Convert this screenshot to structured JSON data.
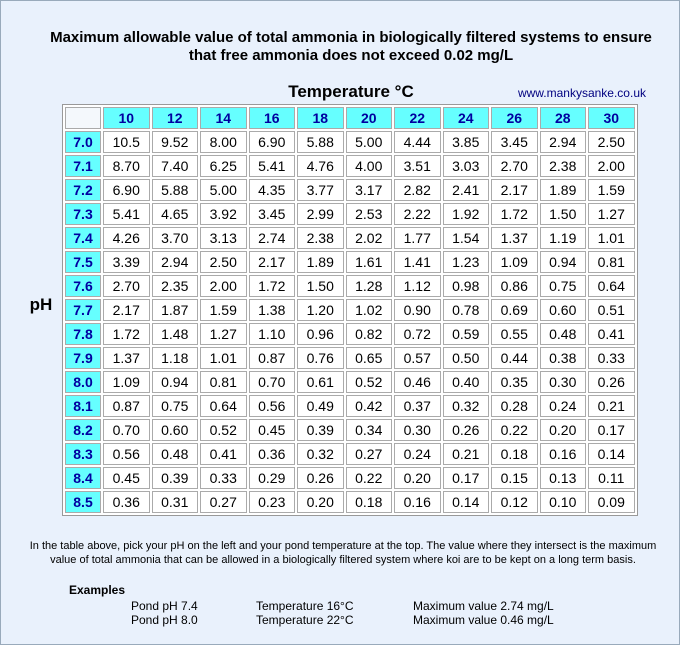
{
  "header": {
    "title_lines": [
      "Maximum allowable value of total ammonia in biologically filtered systems to ensure",
      "that free ammonia does not exceed 0.02 mg/L"
    ]
  },
  "axis": {
    "columns_label": "Temperature °C",
    "rows_label": "pH"
  },
  "source": "www.mankysanke.co.uk",
  "table": {
    "columns": [
      "10",
      "12",
      "14",
      "16",
      "18",
      "20",
      "22",
      "24",
      "26",
      "28",
      "30"
    ],
    "rows": [
      {
        "ph": "7.0",
        "values": [
          "10.5",
          "9.52",
          "8.00",
          "6.90",
          "5.88",
          "5.00",
          "4.44",
          "3.85",
          "3.45",
          "2.94",
          "2.50"
        ]
      },
      {
        "ph": "7.1",
        "values": [
          "8.70",
          "7.40",
          "6.25",
          "5.41",
          "4.76",
          "4.00",
          "3.51",
          "3.03",
          "2.70",
          "2.38",
          "2.00"
        ]
      },
      {
        "ph": "7.2",
        "values": [
          "6.90",
          "5.88",
          "5.00",
          "4.35",
          "3.77",
          "3.17",
          "2.82",
          "2.41",
          "2.17",
          "1.89",
          "1.59"
        ]
      },
      {
        "ph": "7.3",
        "values": [
          "5.41",
          "4.65",
          "3.92",
          "3.45",
          "2.99",
          "2.53",
          "2.22",
          "1.92",
          "1.72",
          "1.50",
          "1.27"
        ]
      },
      {
        "ph": "7.4",
        "values": [
          "4.26",
          "3.70",
          "3.13",
          "2.74",
          "2.38",
          "2.02",
          "1.77",
          "1.54",
          "1.37",
          "1.19",
          "1.01"
        ]
      },
      {
        "ph": "7.5",
        "values": [
          "3.39",
          "2.94",
          "2.50",
          "2.17",
          "1.89",
          "1.61",
          "1.41",
          "1.23",
          "1.09",
          "0.94",
          "0.81"
        ]
      },
      {
        "ph": "7.6",
        "values": [
          "2.70",
          "2.35",
          "2.00",
          "1.72",
          "1.50",
          "1.28",
          "1.12",
          "0.98",
          "0.86",
          "0.75",
          "0.64"
        ]
      },
      {
        "ph": "7.7",
        "values": [
          "2.17",
          "1.87",
          "1.59",
          "1.38",
          "1.20",
          "1.02",
          "0.90",
          "0.78",
          "0.69",
          "0.60",
          "0.51"
        ]
      },
      {
        "ph": "7.8",
        "values": [
          "1.72",
          "1.48",
          "1.27",
          "1.10",
          "0.96",
          "0.82",
          "0.72",
          "0.59",
          "0.55",
          "0.48",
          "0.41"
        ]
      },
      {
        "ph": "7.9",
        "values": [
          "1.37",
          "1.18",
          "1.01",
          "0.87",
          "0.76",
          "0.65",
          "0.57",
          "0.50",
          "0.44",
          "0.38",
          "0.33"
        ]
      },
      {
        "ph": "8.0",
        "values": [
          "1.09",
          "0.94",
          "0.81",
          "0.70",
          "0.61",
          "0.52",
          "0.46",
          "0.40",
          "0.35",
          "0.30",
          "0.26"
        ]
      },
      {
        "ph": "8.1",
        "values": [
          "0.87",
          "0.75",
          "0.64",
          "0.56",
          "0.49",
          "0.42",
          "0.37",
          "0.32",
          "0.28",
          "0.24",
          "0.21"
        ]
      },
      {
        "ph": "8.2",
        "values": [
          "0.70",
          "0.60",
          "0.52",
          "0.45",
          "0.39",
          "0.34",
          "0.30",
          "0.26",
          "0.22",
          "0.20",
          "0.17"
        ]
      },
      {
        "ph": "8.3",
        "values": [
          "0.56",
          "0.48",
          "0.41",
          "0.36",
          "0.32",
          "0.27",
          "0.24",
          "0.21",
          "0.18",
          "0.16",
          "0.14"
        ]
      },
      {
        "ph": "8.4",
        "values": [
          "0.45",
          "0.39",
          "0.33",
          "0.29",
          "0.26",
          "0.22",
          "0.20",
          "0.17",
          "0.15",
          "0.13",
          "0.11"
        ]
      },
      {
        "ph": "8.5",
        "values": [
          "0.36",
          "0.31",
          "0.27",
          "0.23",
          "0.20",
          "0.18",
          "0.16",
          "0.14",
          "0.12",
          "0.10",
          "0.09"
        ]
      }
    ]
  },
  "note": "In the table above, pick your pH on the left and your pond temperature at the top. The value where they intersect is the maximum value of total ammonia that can be allowed in a biologically filtered system where koi are to be kept on a long term basis.",
  "examples": {
    "heading": "Examples",
    "rows": [
      [
        "Pond pH 7.4",
        "Temperature 16°C",
        "Maximum value 2.74 mg/L"
      ],
      [
        "Pond pH 8.0",
        "Temperature 22°C",
        "Maximum value 0.46 mg/L"
      ]
    ]
  }
}
